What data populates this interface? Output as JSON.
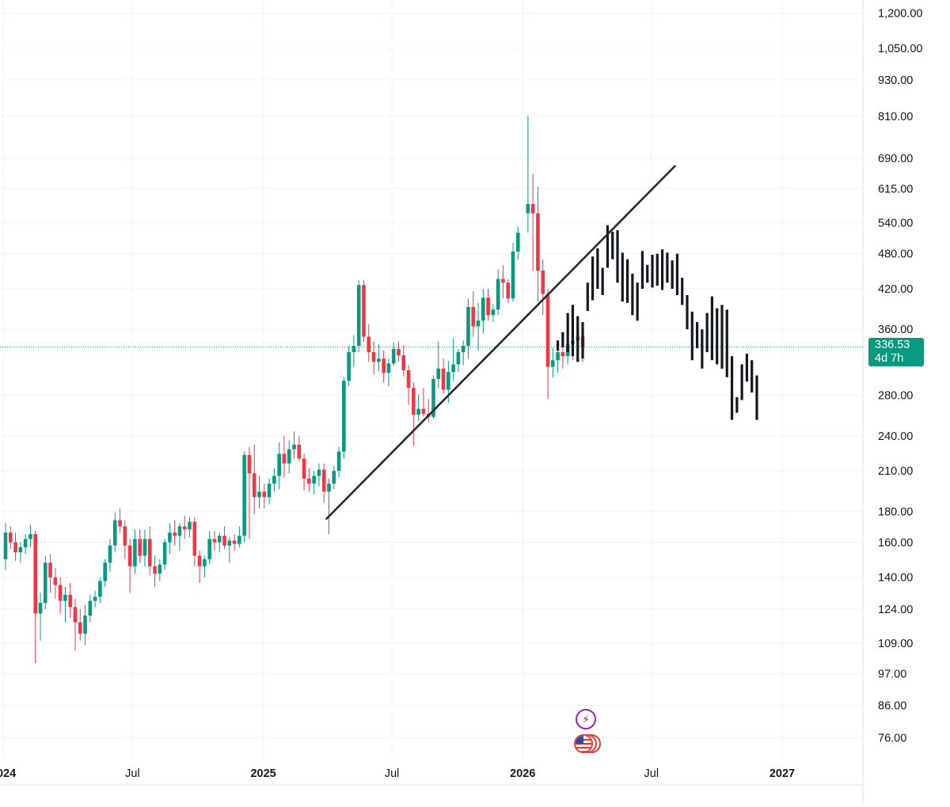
{
  "chart_data": {
    "type": "candlestick",
    "title": "",
    "xlabel": "",
    "ylabel": "",
    "scale": "log",
    "ylim": [
      70,
      1250
    ],
    "grid": true,
    "y_ticks": [
      1200,
      1050,
      930,
      810,
      690,
      615,
      540,
      480,
      420,
      360,
      280,
      240,
      210,
      180,
      160,
      140,
      124,
      109,
      97,
      86,
      76
    ],
    "y_tick_labels": [
      "1,200.00",
      "1,050.00",
      "930.00",
      "810.00",
      "690.00",
      "615.00",
      "540.00",
      "480.00",
      "420.00",
      "360.00",
      "280.00",
      "240.00",
      "210.00",
      "180.00",
      "160.00",
      "140.00",
      "124.00",
      "109.00",
      "97.00",
      "86.00",
      "76.00"
    ],
    "x_ticks": [
      {
        "date": "2024-01-01",
        "label": "2024"
      },
      {
        "date": "2024-07-01",
        "label": "Jul"
      },
      {
        "date": "2025-01-01",
        "label": "2025"
      },
      {
        "date": "2025-07-01",
        "label": "Jul"
      },
      {
        "date": "2026-01-01",
        "label": "2026"
      },
      {
        "date": "2026-07-01",
        "label": "Jul"
      },
      {
        "date": "2027-01-01",
        "label": "2027"
      }
    ],
    "last_price": {
      "value": 336.53,
      "label": "336.53",
      "countdown": "4d 7h"
    },
    "colors": {
      "up": "#089981",
      "down": "#f23645",
      "projection": "#131722",
      "trendline": "#2a2a2a",
      "last_price_line": "#089981"
    },
    "candles_ohlc_weekly": [
      [
        "2024-01-01",
        150,
        172,
        144,
        166
      ],
      [
        "2024-01-08",
        166,
        170,
        156,
        160
      ],
      [
        "2024-01-15",
        160,
        166,
        149,
        154
      ],
      [
        "2024-01-22",
        154,
        160,
        148,
        157
      ],
      [
        "2024-01-29",
        157,
        165,
        153,
        162
      ],
      [
        "2024-02-05",
        162,
        171,
        157,
        165
      ],
      [
        "2024-02-12",
        165,
        167,
        101,
        122
      ],
      [
        "2024-02-19",
        122,
        132,
        110,
        127
      ],
      [
        "2024-02-26",
        127,
        152,
        124,
        148
      ],
      [
        "2024-03-04",
        148,
        153,
        132,
        140
      ],
      [
        "2024-03-11",
        140,
        145,
        129,
        136
      ],
      [
        "2024-03-18",
        136,
        140,
        122,
        128
      ],
      [
        "2024-03-25",
        128,
        135,
        118,
        131
      ],
      [
        "2024-04-01",
        131,
        137,
        120,
        125
      ],
      [
        "2024-04-08",
        125,
        129,
        106,
        118
      ],
      [
        "2024-04-15",
        118,
        124,
        110,
        113
      ],
      [
        "2024-04-22",
        113,
        126,
        108,
        121
      ],
      [
        "2024-04-29",
        121,
        131,
        118,
        128
      ],
      [
        "2024-05-06",
        128,
        133,
        125,
        130
      ],
      [
        "2024-05-13",
        130,
        140,
        127,
        138
      ],
      [
        "2024-05-20",
        138,
        150,
        135,
        148
      ],
      [
        "2024-05-27",
        148,
        162,
        143,
        158
      ],
      [
        "2024-06-03",
        158,
        179,
        154,
        174
      ],
      [
        "2024-06-10",
        174,
        182,
        166,
        170
      ],
      [
        "2024-06-17",
        170,
        174,
        150,
        158
      ],
      [
        "2024-06-24",
        158,
        162,
        132,
        146
      ],
      [
        "2024-07-01",
        146,
        168,
        142,
        162
      ],
      [
        "2024-07-08",
        162,
        168,
        148,
        152
      ],
      [
        "2024-07-15",
        152,
        168,
        146,
        162
      ],
      [
        "2024-07-22",
        162,
        170,
        141,
        146
      ],
      [
        "2024-07-29",
        146,
        152,
        135,
        142
      ],
      [
        "2024-08-05",
        142,
        150,
        138,
        147
      ],
      [
        "2024-08-12",
        147,
        162,
        144,
        160
      ],
      [
        "2024-08-19",
        160,
        172,
        153,
        166
      ],
      [
        "2024-08-26",
        166,
        174,
        158,
        164
      ],
      [
        "2024-09-02",
        164,
        172,
        155,
        170
      ],
      [
        "2024-09-09",
        170,
        177,
        162,
        168
      ],
      [
        "2024-09-16",
        168,
        176,
        163,
        173
      ],
      [
        "2024-09-23",
        173,
        176,
        146,
        152
      ],
      [
        "2024-09-30",
        152,
        155,
        137,
        146
      ],
      [
        "2024-10-07",
        146,
        152,
        140,
        150
      ],
      [
        "2024-10-14",
        150,
        167,
        147,
        162
      ],
      [
        "2024-10-21",
        162,
        167,
        155,
        160
      ],
      [
        "2024-10-28",
        160,
        166,
        154,
        164
      ],
      [
        "2024-11-04",
        164,
        170,
        156,
        158
      ],
      [
        "2024-11-11",
        158,
        163,
        148,
        161
      ],
      [
        "2024-11-18",
        161,
        165,
        155,
        159
      ],
      [
        "2024-11-25",
        159,
        170,
        157,
        164
      ],
      [
        "2024-12-02",
        164,
        226,
        160,
        223
      ],
      [
        "2024-12-09",
        223,
        230,
        162,
        208
      ],
      [
        "2024-12-16",
        208,
        232,
        178,
        190
      ],
      [
        "2024-12-23",
        190,
        206,
        182,
        194
      ],
      [
        "2024-12-30",
        194,
        200,
        182,
        190
      ],
      [
        "2025-01-06",
        190,
        204,
        185,
        200
      ],
      [
        "2025-01-13",
        200,
        212,
        194,
        206
      ],
      [
        "2025-01-20",
        206,
        234,
        196,
        224
      ],
      [
        "2025-01-27",
        224,
        240,
        205,
        216
      ],
      [
        "2025-02-03",
        216,
        236,
        208,
        228
      ],
      [
        "2025-02-10",
        228,
        244,
        220,
        232
      ],
      [
        "2025-02-17",
        232,
        240,
        218,
        220
      ],
      [
        "2025-02-24",
        220,
        224,
        195,
        204
      ],
      [
        "2025-03-03",
        204,
        212,
        194,
        200
      ],
      [
        "2025-03-10",
        200,
        210,
        192,
        206
      ],
      [
        "2025-03-17",
        206,
        216,
        198,
        211
      ],
      [
        "2025-03-24",
        211,
        216,
        186,
        194
      ],
      [
        "2025-03-31",
        194,
        204,
        165,
        200
      ],
      [
        "2025-04-07",
        200,
        214,
        196,
        210
      ],
      [
        "2025-04-14",
        210,
        230,
        205,
        226
      ],
      [
        "2025-04-21",
        226,
        300,
        220,
        296
      ],
      [
        "2025-04-28",
        296,
        338,
        290,
        330
      ],
      [
        "2025-05-05",
        330,
        352,
        312,
        338
      ],
      [
        "2025-05-12",
        338,
        434,
        330,
        426
      ],
      [
        "2025-05-19",
        426,
        434,
        343,
        350
      ],
      [
        "2025-05-26",
        350,
        367,
        318,
        330
      ],
      [
        "2025-06-02",
        330,
        344,
        303,
        318
      ],
      [
        "2025-06-09",
        318,
        340,
        307,
        322
      ],
      [
        "2025-06-16",
        322,
        332,
        294,
        305
      ],
      [
        "2025-06-23",
        305,
        322,
        290,
        316
      ],
      [
        "2025-06-30",
        316,
        343,
        313,
        334
      ],
      [
        "2025-07-07",
        334,
        344,
        318,
        326
      ],
      [
        "2025-07-14",
        326,
        339,
        301,
        308
      ],
      [
        "2025-07-21",
        308,
        314,
        270,
        288
      ],
      [
        "2025-07-28",
        288,
        294,
        231,
        260
      ],
      [
        "2025-08-04",
        260,
        281,
        254,
        266
      ],
      [
        "2025-08-11",
        266,
        288,
        258,
        261
      ],
      [
        "2025-08-18",
        261,
        276,
        253,
        258
      ],
      [
        "2025-08-25",
        258,
        302,
        256,
        298
      ],
      [
        "2025-09-01",
        298,
        344,
        288,
        310
      ],
      [
        "2025-09-08",
        310,
        322,
        282,
        286
      ],
      [
        "2025-09-15",
        286,
        319,
        272,
        306
      ],
      [
        "2025-09-22",
        306,
        348,
        296,
        315
      ],
      [
        "2025-09-29",
        315,
        334,
        306,
        330
      ],
      [
        "2025-10-06",
        330,
        345,
        314,
        338
      ],
      [
        "2025-10-13",
        338,
        405,
        322,
        392
      ],
      [
        "2025-10-20",
        392,
        416,
        350,
        364
      ],
      [
        "2025-10-27",
        364,
        398,
        332,
        372
      ],
      [
        "2025-11-03",
        372,
        420,
        355,
        406
      ],
      [
        "2025-11-10",
        406,
        420,
        372,
        380
      ],
      [
        "2025-11-17",
        380,
        396,
        370,
        388
      ],
      [
        "2025-11-24",
        388,
        452,
        380,
        436
      ],
      [
        "2025-12-01",
        436,
        460,
        405,
        430
      ],
      [
        "2025-12-08",
        430,
        436,
        398,
        405
      ],
      [
        "2025-12-15",
        405,
        500,
        400,
        484
      ],
      [
        "2025-12-22",
        484,
        532,
        470,
        520
      ],
      [
        "2026-01-05",
        560,
        812,
        520,
        580
      ],
      [
        "2026-01-12",
        580,
        650,
        450,
        560
      ],
      [
        "2026-01-19",
        560,
        620,
        400,
        450
      ],
      [
        "2026-01-26",
        450,
        470,
        380,
        412
      ],
      [
        "2026-02-02",
        412,
        420,
        276,
        312
      ],
      [
        "2026-02-09",
        312,
        335,
        300,
        320
      ],
      [
        "2026-02-16",
        320,
        340,
        305,
        330
      ],
      [
        "2026-02-23",
        330,
        350,
        310,
        325
      ],
      [
        "2026-03-02",
        325,
        360,
        315,
        340
      ],
      [
        "2026-03-09",
        340,
        370,
        320,
        345
      ],
      [
        "2026-03-16",
        345,
        380,
        325,
        350
      ],
      [
        "2026-03-23",
        350,
        360,
        318,
        336.53
      ]
    ],
    "projection_bars": [
      [
        "2026-02-16",
        332,
        345
      ],
      [
        "2026-02-23",
        336,
        356
      ],
      [
        "2026-03-02",
        330,
        383
      ],
      [
        "2026-03-09",
        325,
        395
      ],
      [
        "2026-03-16",
        318,
        378
      ],
      [
        "2026-03-23",
        322,
        370
      ],
      [
        "2026-03-30",
        386,
        430
      ],
      [
        "2026-04-06",
        402,
        475
      ],
      [
        "2026-04-13",
        420,
        490
      ],
      [
        "2026-04-20",
        410,
        455
      ],
      [
        "2026-04-27",
        455,
        535
      ],
      [
        "2026-05-04",
        470,
        522
      ],
      [
        "2026-05-11",
        430,
        525
      ],
      [
        "2026-05-18",
        400,
        482
      ],
      [
        "2026-05-25",
        398,
        470
      ],
      [
        "2026-06-01",
        380,
        445
      ],
      [
        "2026-06-08",
        372,
        430
      ],
      [
        "2026-06-15",
        420,
        485
      ],
      [
        "2026-06-22",
        430,
        460
      ],
      [
        "2026-06-29",
        422,
        478
      ],
      [
        "2026-07-06",
        425,
        480
      ],
      [
        "2026-07-13",
        418,
        488
      ],
      [
        "2026-07-20",
        430,
        482
      ],
      [
        "2026-07-27",
        420,
        468
      ],
      [
        "2026-08-03",
        410,
        480
      ],
      [
        "2026-08-10",
        395,
        438
      ],
      [
        "2026-08-17",
        360,
        410
      ],
      [
        "2026-08-24",
        320,
        385
      ],
      [
        "2026-08-31",
        335,
        370
      ],
      [
        "2026-09-07",
        310,
        360
      ],
      [
        "2026-09-14",
        330,
        383
      ],
      [
        "2026-09-21",
        320,
        408
      ],
      [
        "2026-09-28",
        315,
        390
      ],
      [
        "2026-10-05",
        310,
        395
      ],
      [
        "2026-10-12",
        300,
        388
      ],
      [
        "2026-10-19",
        255,
        325
      ],
      [
        "2026-10-26",
        262,
        278
      ],
      [
        "2026-11-02",
        275,
        315
      ],
      [
        "2026-11-09",
        295,
        328
      ],
      [
        "2026-11-16",
        283,
        320
      ],
      [
        "2026-11-23",
        255,
        302
      ]
    ],
    "trendline": {
      "start": {
        "date": "2025-03-31",
        "value": 175
      },
      "end": {
        "date": "2026-08-03",
        "value": 670
      }
    }
  }
}
